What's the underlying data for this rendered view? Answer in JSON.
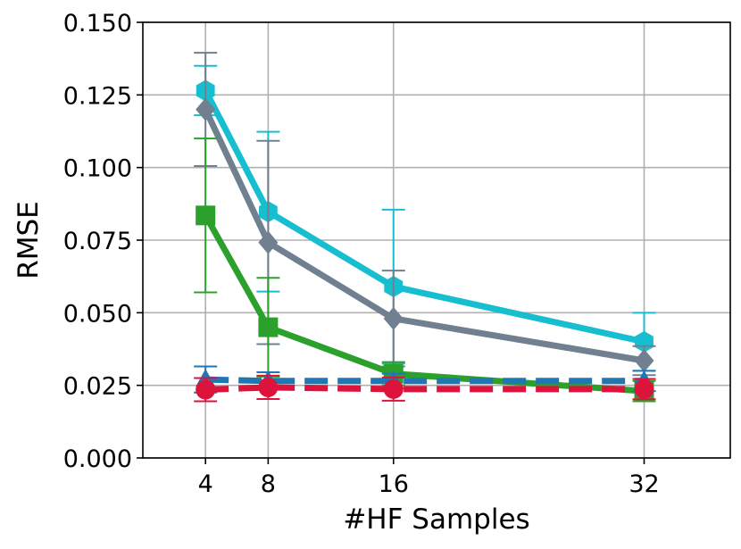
{
  "chart_data": {
    "type": "line",
    "title": "",
    "xlabel": "#HF Samples",
    "ylabel": "RMSE",
    "xlim": [
      0,
      37.5
    ],
    "ylim": [
      0,
      0.15
    ],
    "x_ticks": [
      4,
      8,
      16,
      32
    ],
    "x_tick_labels": [
      "4",
      "8",
      "16",
      "32"
    ],
    "y_ticks": [
      0,
      0.025,
      0.05,
      0.075,
      0.1,
      0.125,
      0.15
    ],
    "y_tick_labels": [
      "0.000",
      "0.025",
      "0.050",
      "0.075",
      "0.100",
      "0.125",
      "0.150"
    ],
    "grid": true,
    "legend": "none",
    "x": [
      4,
      8,
      16,
      32
    ],
    "series": [
      {
        "values": [
          0.1265,
          0.0848,
          0.059,
          0.04
        ],
        "err": [
          0.0085,
          0.0275,
          0.0265,
          0.01
        ],
        "color": "#17becf",
        "marker": "hexagon",
        "linestyle": "solid"
      },
      {
        "values": [
          0.12,
          0.0742,
          0.048,
          0.0335
        ],
        "err": [
          0.0195,
          0.035,
          0.0165,
          0.005
        ],
        "color": "#708090",
        "marker": "diamond",
        "linestyle": "solid"
      },
      {
        "values": [
          0.0835,
          0.045,
          0.029,
          0.023
        ],
        "err": [
          0.0265,
          0.017,
          0.004,
          0.0035
        ],
        "color": "#2ca02c",
        "marker": "square",
        "linestyle": "solid"
      },
      {
        "values": [
          0.027,
          0.0265,
          0.0265,
          0.0265
        ],
        "err": [
          0.0045,
          0.003,
          0.0025,
          0.0035
        ],
        "color": "#1f77b4",
        "marker": "triangle",
        "linestyle": "dashed"
      },
      {
        "values": [
          0.0235,
          0.0243,
          0.0237,
          0.0237
        ],
        "err": [
          0.004,
          0.004,
          0.004,
          0.0035
        ],
        "color": "#dc143c",
        "marker": "circle",
        "linestyle": "dashed"
      }
    ]
  }
}
